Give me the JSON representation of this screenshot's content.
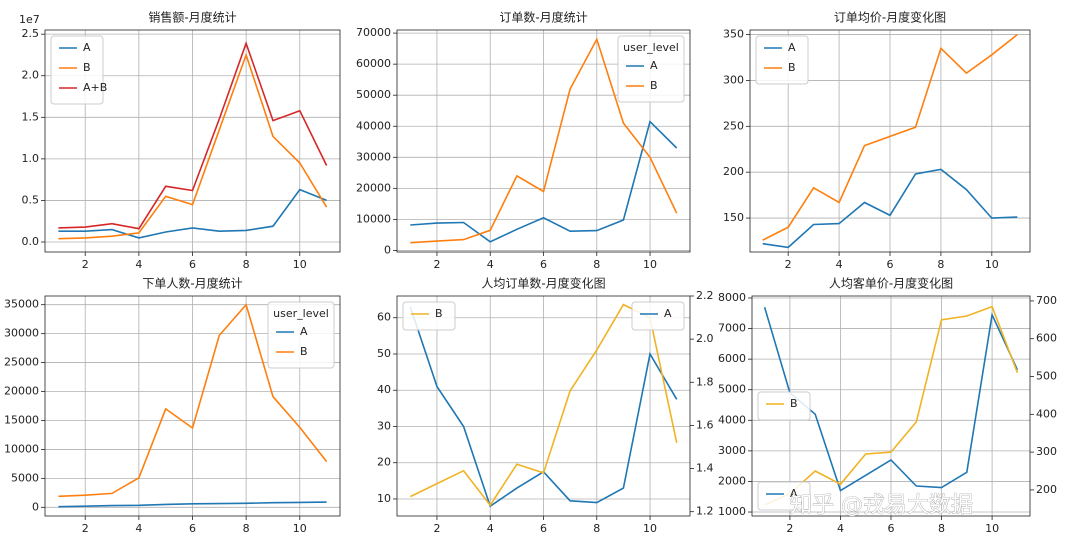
{
  "chart_data": [
    {
      "type": "line",
      "title": "销售额-月度统计",
      "y_offset_label": "1e7",
      "grid": true,
      "legend_loc": "upper left",
      "x": [
        1,
        2,
        3,
        4,
        5,
        6,
        7,
        8,
        9,
        10,
        11
      ],
      "xlim": [
        0.5,
        11.5
      ],
      "xticks": [
        2,
        4,
        6,
        8,
        10
      ],
      "ylim": [
        -0.12,
        2.55
      ],
      "yticks": [
        {
          "value": 0,
          "label": "0.0"
        },
        0.5,
        {
          "value": 1,
          "label": "1.0"
        },
        1.5,
        {
          "value": 2,
          "label": "2.0"
        },
        2.5
      ],
      "series": [
        {
          "name": "A",
          "color": "#1f77b4",
          "values": [
            0.13,
            0.13,
            0.15,
            0.05,
            0.12,
            0.17,
            0.13,
            0.14,
            0.19,
            0.63,
            0.5
          ]
        },
        {
          "name": "B",
          "color": "#ff7f0e",
          "values": [
            0.04,
            0.05,
            0.07,
            0.11,
            0.55,
            0.45,
            1.35,
            2.25,
            1.27,
            0.95,
            0.42
          ]
        },
        {
          "name": "A+B",
          "color": "#d62728",
          "values": [
            0.17,
            0.18,
            0.22,
            0.16,
            0.67,
            0.62,
            1.48,
            2.39,
            1.46,
            1.58,
            0.92
          ]
        }
      ]
    },
    {
      "type": "line",
      "title": "订单数-月度统计",
      "grid": true,
      "legend_loc": "upper right",
      "legend_title": "user_level",
      "x": [
        1,
        2,
        3,
        4,
        5,
        6,
        7,
        8,
        9,
        10,
        11
      ],
      "xlim": [
        0.5,
        11.5
      ],
      "xticks": [
        2,
        4,
        6,
        8,
        10
      ],
      "ylim": [
        -500,
        71000
      ],
      "yticks": [
        0,
        10000,
        20000,
        30000,
        40000,
        50000,
        60000,
        70000
      ],
      "series": [
        {
          "name": "A",
          "color": "#1f77b4",
          "values": [
            8200,
            8800,
            9000,
            2800,
            6800,
            10500,
            6200,
            6400,
            9800,
            41500,
            33000
          ]
        },
        {
          "name": "B",
          "color": "#ff7f0e",
          "values": [
            2500,
            3000,
            3500,
            6500,
            24000,
            19000,
            52000,
            68000,
            41000,
            30000,
            12000
          ]
        }
      ]
    },
    {
      "type": "line",
      "title": "订单均价-月度变化图",
      "grid": true,
      "legend_loc": "upper left",
      "x": [
        1,
        2,
        3,
        4,
        5,
        6,
        7,
        8,
        9,
        10,
        11
      ],
      "xlim": [
        0.5,
        11.5
      ],
      "xticks": [
        2,
        4,
        6,
        8,
        10
      ],
      "ylim": [
        113,
        355
      ],
      "yticks": [
        150,
        200,
        250,
        300,
        350
      ],
      "series": [
        {
          "name": "A",
          "color": "#1f77b4",
          "values": [
            122,
            118,
            143,
            144,
            167,
            153,
            198,
            203,
            181,
            150,
            151
          ]
        },
        {
          "name": "B",
          "color": "#ff7f0e",
          "values": [
            126,
            140,
            183,
            167,
            229,
            239,
            249,
            335,
            308,
            328,
            350
          ]
        }
      ]
    },
    {
      "type": "line",
      "title": "下单人数-月度统计",
      "grid": true,
      "legend_loc": "upper right",
      "legend_title": "user_level",
      "x": [
        1,
        2,
        3,
        4,
        5,
        6,
        7,
        8,
        9,
        10,
        11
      ],
      "xlim": [
        0.5,
        11.5
      ],
      "xticks": [
        2,
        4,
        6,
        8,
        10
      ],
      "ylim": [
        -1500,
        36500
      ],
      "yticks": [
        0,
        5000,
        10000,
        15000,
        20000,
        25000,
        30000,
        35000
      ],
      "series": [
        {
          "name": "A",
          "color": "#1f77b4",
          "values": [
            100,
            200,
            300,
            350,
            500,
            600,
            650,
            700,
            800,
            850,
            900
          ]
        },
        {
          "name": "B",
          "color": "#ff7f0e",
          "values": [
            1900,
            2100,
            2400,
            5100,
            17000,
            13700,
            29700,
            35000,
            19100,
            13800,
            7900
          ]
        }
      ]
    },
    {
      "type": "line",
      "title": "人均订单数-月度变化图",
      "grid": true,
      "legend_loc": "upper right",
      "legend2_loc": "upper left",
      "x": [
        1,
        2,
        3,
        4,
        5,
        6,
        7,
        8,
        9,
        10,
        11
      ],
      "xlim": [
        0.5,
        11.5
      ],
      "xticks": [
        2,
        4,
        6,
        8,
        10
      ],
      "ylim": [
        5.3,
        66
      ],
      "yticks": [
        10,
        20,
        30,
        40,
        50,
        60
      ],
      "y2lim": [
        1.18,
        2.2
      ],
      "y2ticks": [
        1.2,
        1.4,
        1.6,
        1.8,
        {
          "value": 2,
          "label": "2.0"
        },
        2.2
      ],
      "series": [
        {
          "name": "A",
          "color": "#1f77b4",
          "values": [
            63,
            41,
            30,
            8,
            13,
            17.5,
            9.5,
            9,
            13,
            50,
            37.5
          ]
        },
        {
          "name": "B",
          "color": "#f0b323",
          "axis": "y2",
          "values": [
            1.27,
            1.33,
            1.39,
            1.23,
            1.42,
            1.38,
            1.76,
            1.95,
            2.16,
            2.1,
            1.52
          ]
        }
      ]
    },
    {
      "type": "line",
      "title": "人均客单价-月度变化图",
      "grid": true,
      "legend_loc": "lower left",
      "legend2_loc": "center left",
      "x": [
        1,
        2,
        3,
        4,
        5,
        6,
        7,
        8,
        9,
        10,
        11
      ],
      "xlim": [
        0.5,
        11.5
      ],
      "xticks": [
        2,
        4,
        6,
        8,
        10
      ],
      "ylim": [
        870,
        8065
      ],
      "yticks": [
        1000,
        2000,
        3000,
        4000,
        5000,
        6000,
        7000,
        8000
      ],
      "y2lim": [
        131,
        713
      ],
      "y2ticks": [
        200,
        300,
        400,
        500,
        600,
        700
      ],
      "series": [
        {
          "name": "A",
          "color": "#1f77b4",
          "values": [
            7700,
            4900,
            4200,
            1700,
            2200,
            2700,
            1850,
            1800,
            2300,
            7450,
            5650
          ]
        },
        {
          "name": "B",
          "color": "#f0b323",
          "axis": "y2",
          "values": [
            160,
            190,
            250,
            215,
            295,
            300,
            380,
            650,
            660,
            685,
            510
          ]
        }
      ]
    }
  ],
  "watermark": "知乎 @戎易大数据"
}
